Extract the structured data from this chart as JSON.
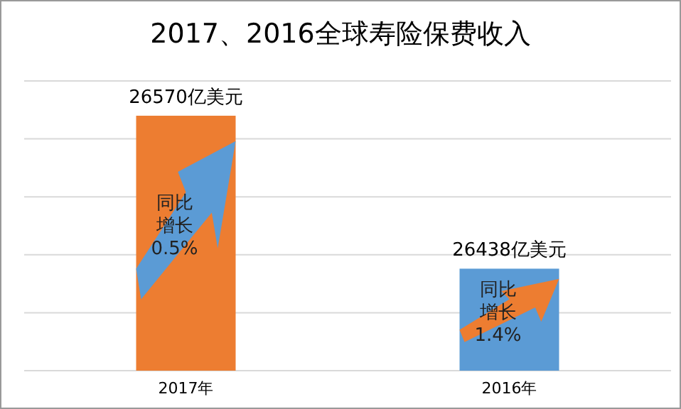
{
  "chart_data": {
    "type": "bar",
    "title": "2017、2016全球寿险保费收入",
    "categories": [
      "2017年",
      "2016年"
    ],
    "values": [
      26570,
      26438
    ],
    "colors": [
      "#ed7d31",
      "#5b9bd5"
    ],
    "value_labels": [
      "26570亿美元",
      "26438亿美元"
    ],
    "ylim": [
      26350,
      26600
    ],
    "yticks": [
      {
        "value": 26350,
        "label": null
      },
      {
        "value": 26400,
        "label": null
      },
      {
        "value": 26450,
        "label": null
      },
      {
        "value": 26500,
        "label": null
      },
      {
        "value": 26550,
        "label": null
      },
      {
        "value": 26600,
        "label": null
      }
    ],
    "grid": "y",
    "tick_labels": "x",
    "annotations": [
      "同比增长0.5%",
      "同比增长1.4%"
    ]
  }
}
